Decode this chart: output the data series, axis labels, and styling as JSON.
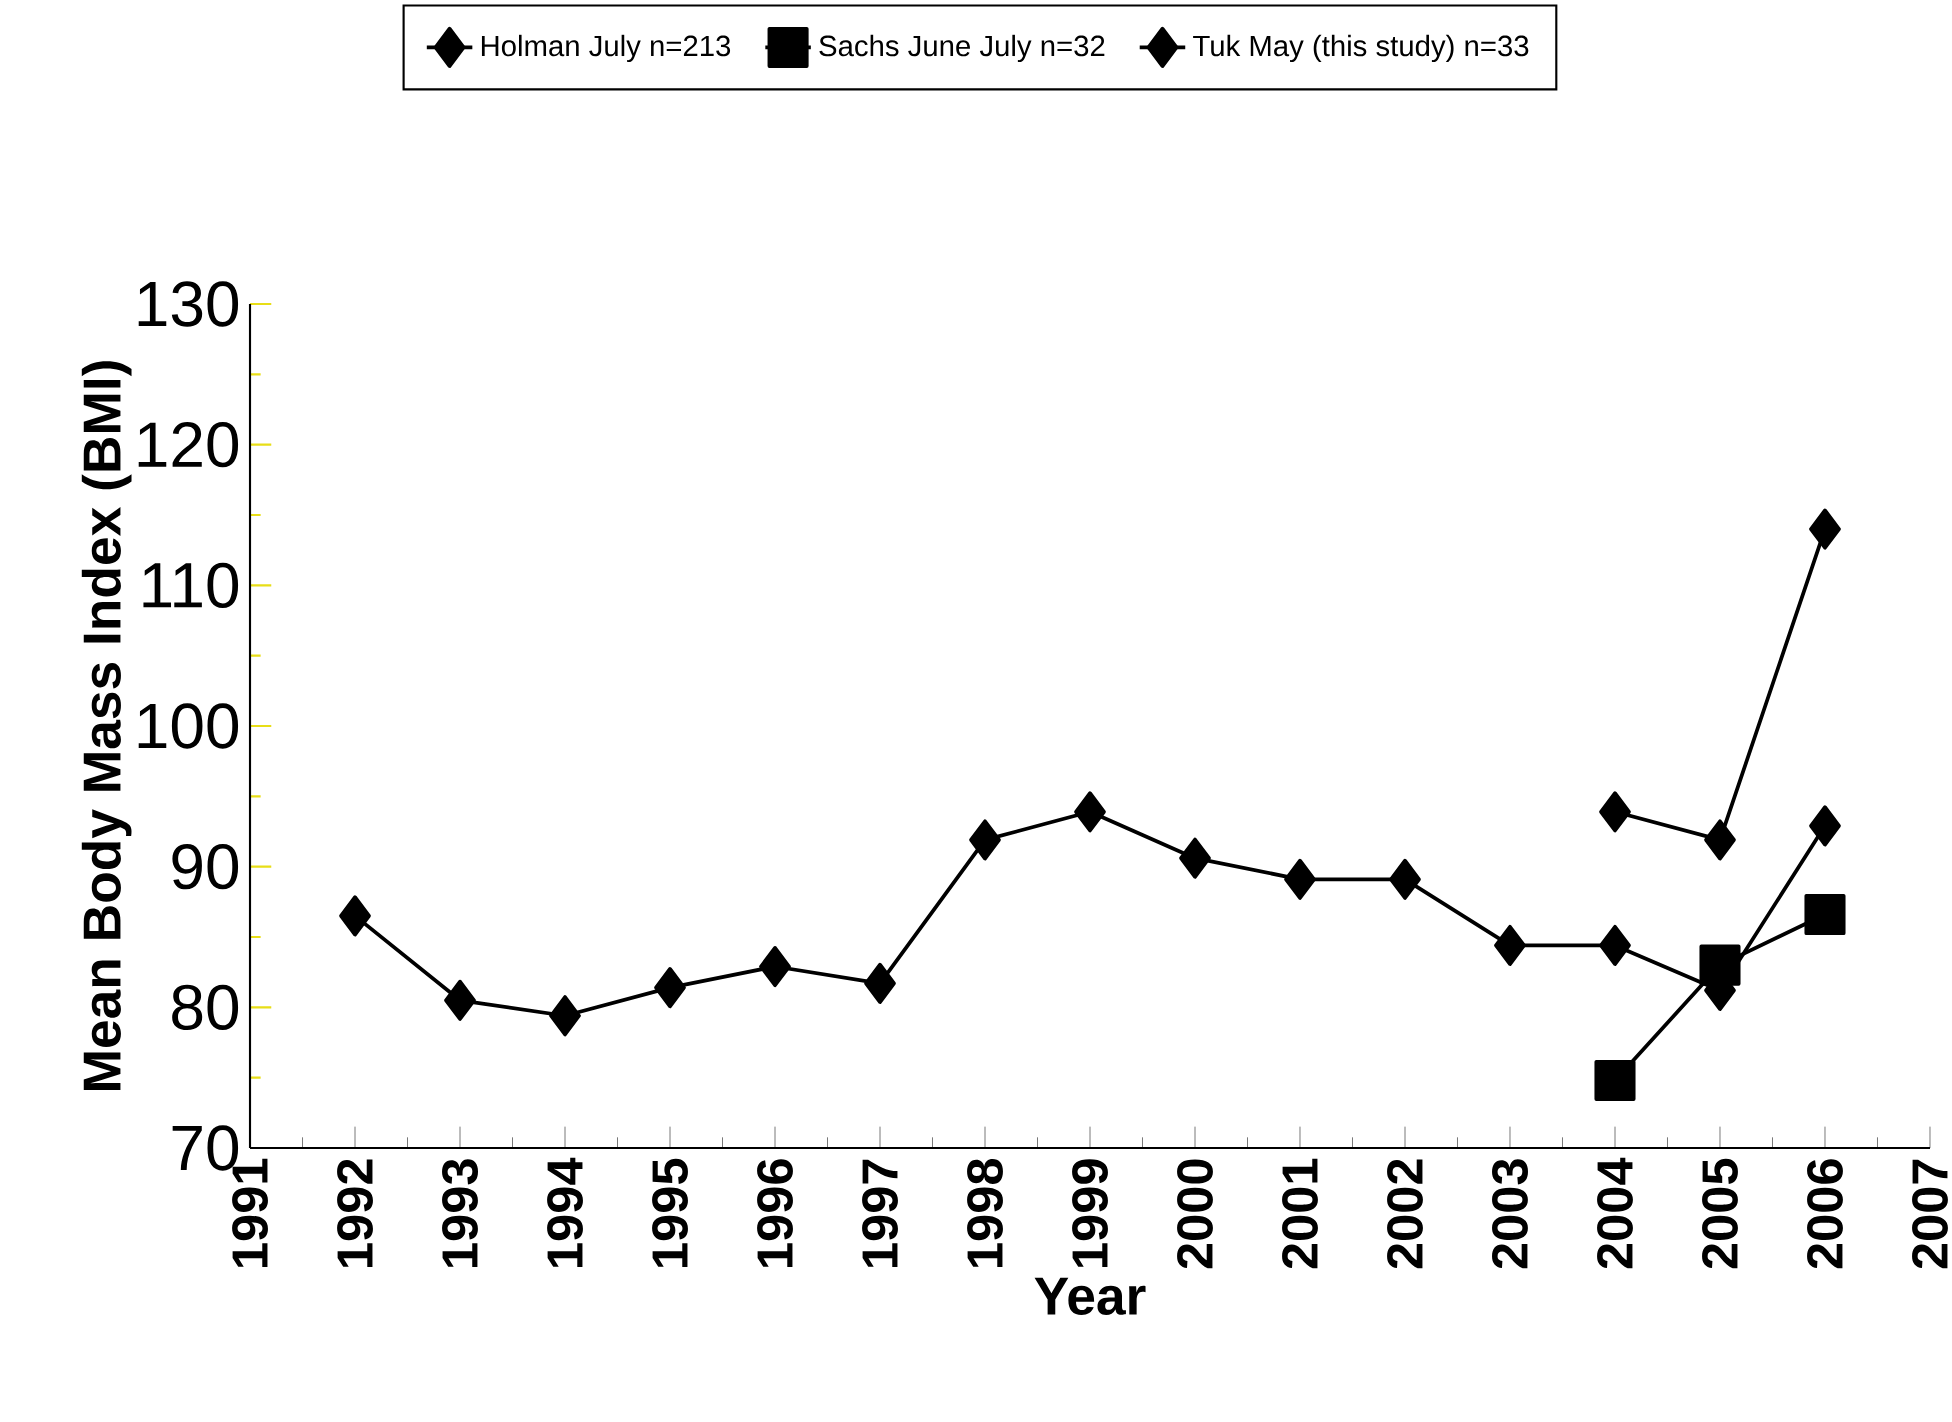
{
  "chart_data": {
    "type": "line",
    "xlabel": "Year",
    "ylabel": "Mean Body Mass Index (BMI)",
    "xlim": [
      1991,
      2007
    ],
    "xticks": [
      1991,
      1992,
      1993,
      1994,
      1995,
      1996,
      1997,
      1998,
      1999,
      2000,
      2001,
      2002,
      2003,
      2004,
      2005,
      2006,
      2007
    ],
    "ylim": [
      70,
      130
    ],
    "yticks": [
      70,
      80,
      90,
      100,
      110,
      120,
      130
    ],
    "grid": false,
    "legend": "top",
    "line_style": "solid",
    "series": [
      {
        "name": "Holman July n=213",
        "color": "#000000",
        "marker": "diamond",
        "x": [
          1992,
          1993,
          1994,
          1995,
          1996,
          1997,
          1998,
          1999,
          2000,
          2001,
          2002,
          2003,
          2004,
          2005,
          2006
        ],
        "values": [
          86.5,
          80.5,
          79.4,
          81.4,
          82.9,
          81.7,
          91.9,
          93.9,
          90.6,
          89.1,
          89.1,
          84.4,
          84.4,
          81.2,
          92.9
        ]
      },
      {
        "name": "Sachs June July n=32",
        "color": "#000000",
        "marker": "square",
        "x": [
          2004,
          2005,
          2006
        ],
        "values": [
          74.8,
          83.0,
          86.6
        ]
      },
      {
        "name": "Tuk May (this study) n=33",
        "color": "#000000",
        "marker": "diamond",
        "x": [
          2004,
          2005,
          2006
        ],
        "values": [
          93.9,
          91.9,
          114.0
        ]
      }
    ]
  }
}
